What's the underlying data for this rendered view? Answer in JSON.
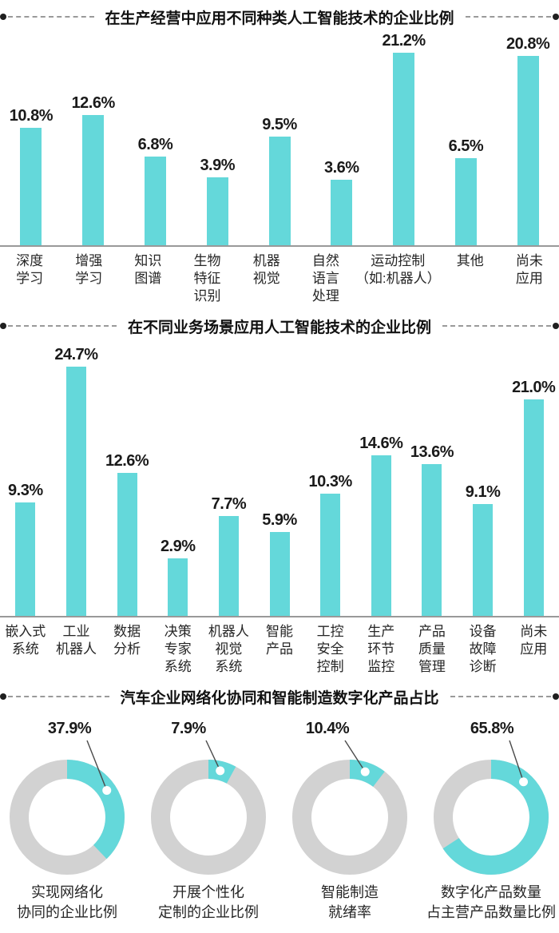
{
  "colors": {
    "teal": "#64d8da",
    "ring_gray": "#d2d2d2",
    "axis_gray": "#999999",
    "dash_gray": "#9a9a9a",
    "end_dot": "#1f1f1f",
    "text": "#1a1a1a"
  },
  "chart_data": [
    {
      "type": "bar",
      "title": "在生产经营中应用不同种类人工智能技术的企业比例",
      "unit": "%",
      "categories": [
        "深度学习",
        "增强学习",
        "知识图谱",
        "生物特征识别",
        "机器视觉",
        "自然语言处理",
        "运动控制（如:机器人）",
        "其他",
        "尚未应用"
      ],
      "category_lines": [
        [
          "深度",
          "学习"
        ],
        [
          "增强",
          "学习"
        ],
        [
          "知识",
          "图谱"
        ],
        [
          "生物",
          "特征",
          "识别"
        ],
        [
          "机器",
          "视觉"
        ],
        [
          "自然",
          "语言",
          "处理"
        ],
        [
          "运动控制",
          "（如:机器人）"
        ],
        [
          "其他"
        ],
        [
          "尚未",
          "应用"
        ]
      ],
      "values": [
        10.8,
        12.6,
        6.8,
        3.9,
        9.5,
        3.6,
        21.2,
        6.5,
        20.8
      ],
      "grid": false,
      "legend": "none"
    },
    {
      "type": "bar",
      "title": "在不同业务场景应用人工智能技术的企业比例",
      "unit": "%",
      "categories": [
        "嵌入式系统",
        "工业机器人",
        "数据分析",
        "决策专家系统",
        "机器人视觉系统",
        "智能产品",
        "工控安全控制",
        "生产环节监控",
        "产品质量管理",
        "设备故障诊断",
        "尚未应用"
      ],
      "category_lines": [
        [
          "嵌入式",
          "系统"
        ],
        [
          "工业",
          "机器人"
        ],
        [
          "数据",
          "分析"
        ],
        [
          "决策",
          "专家",
          "系统"
        ],
        [
          "机器人",
          "视觉",
          "系统"
        ],
        [
          "智能",
          "产品"
        ],
        [
          "工控",
          "安全",
          "控制"
        ],
        [
          "生产",
          "环节",
          "监控"
        ],
        [
          "产品",
          "质量",
          "管理"
        ],
        [
          "设备",
          "故障",
          "诊断"
        ],
        [
          "尚未",
          "应用"
        ]
      ],
      "values": [
        9.3,
        24.7,
        12.6,
        2.9,
        7.7,
        5.9,
        10.3,
        14.6,
        13.6,
        9.1,
        21.0
      ],
      "grid": false,
      "legend": "none"
    },
    {
      "type": "pie",
      "subtype": "donut-group",
      "title": "汽车企业网络化协同和智能制造数字化产品占比",
      "unit": "%",
      "donuts": [
        {
          "value": 37.9,
          "label": "实现网络化协同的企业比例",
          "label_lines": [
            "实现网络化",
            "协同的企业比例"
          ]
        },
        {
          "value": 7.9,
          "label": "开展个性化定制的企业比例",
          "label_lines": [
            "开展个性化",
            "定制的企业比例"
          ]
        },
        {
          "value": 10.4,
          "label": "智能制造就绪率",
          "label_lines": [
            "智能制造",
            "就绪率"
          ]
        },
        {
          "value": 65.8,
          "label": "数字化产品数量占主营产品数量比例",
          "label_lines": [
            "数字化产品数量",
            "占主营产品数量比例"
          ]
        }
      ]
    }
  ]
}
